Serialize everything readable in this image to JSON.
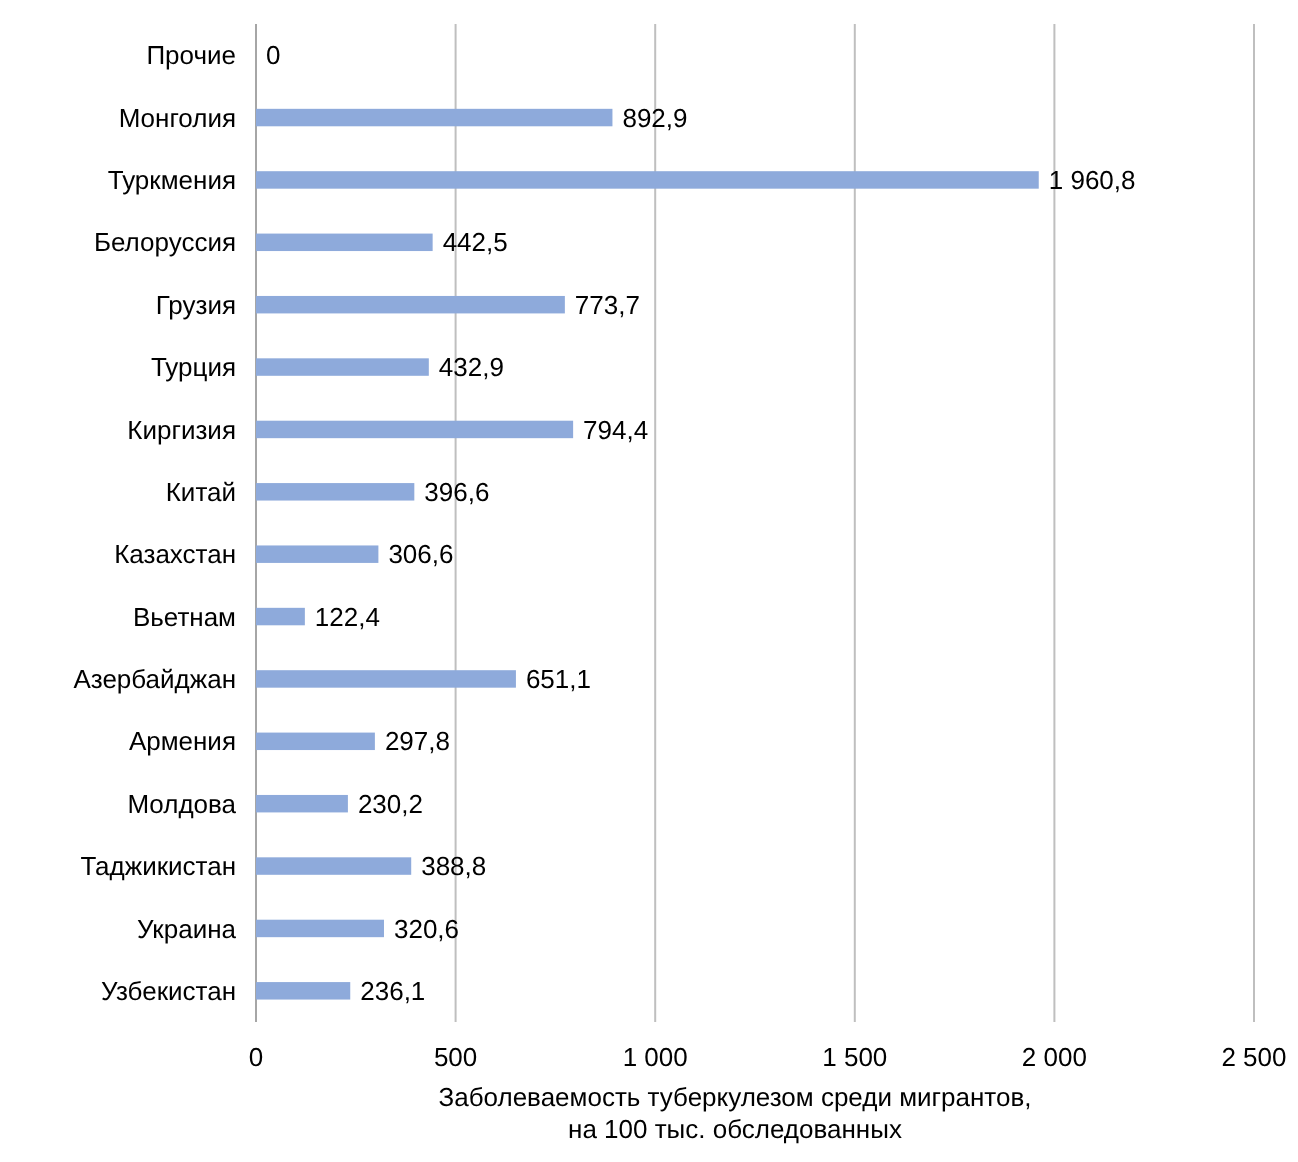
{
  "chart_data": {
    "type": "bar",
    "orientation": "horizontal",
    "xlabel": "Заболеваемость туберкулезом среди мигрантов,\nна 100 тыс. обследованных",
    "categories": [
      "Прочие",
      "Монголия",
      "Туркмения",
      "Белоруссия",
      "Грузия",
      "Турция",
      "Киргизия",
      "Китай",
      "Казахстан",
      "Вьетнам",
      "Азербайджан",
      "Армения",
      "Молдова",
      "Таджикистан",
      "Украина",
      "Узбекистан"
    ],
    "values": [
      0,
      892.9,
      1960.8,
      442.5,
      773.7,
      432.9,
      794.4,
      396.6,
      306.6,
      122.4,
      651.1,
      297.8,
      230.2,
      388.8,
      320.6,
      236.1
    ],
    "value_labels": [
      "0",
      "892,9",
      "1 960,8",
      "442,5",
      "773,7",
      "432,9",
      "794,4",
      "396,6",
      "306,6",
      "122,4",
      "651,1",
      "297,8",
      "230,2",
      "388,8",
      "320,6",
      "236,1"
    ],
    "color": "#8eaadb",
    "xlim": [
      0,
      2500
    ],
    "xticks": [
      0,
      500,
      {
        "value": 1000,
        "label": "1 000"
      },
      {
        "value": 1500,
        "label": "1 500"
      },
      {
        "value": 2000,
        "label": "2 000"
      },
      {
        "value": 2500,
        "label": "2 500"
      }
    ],
    "grid": "x"
  }
}
